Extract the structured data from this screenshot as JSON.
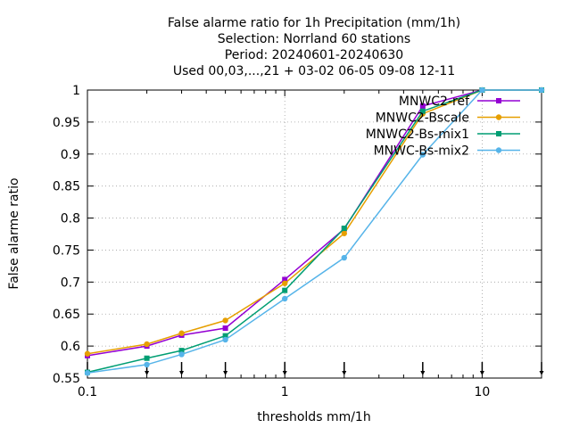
{
  "chart_data": {
    "type": "line",
    "title_lines": [
      "False alarme ratio  for 1h Precipitation (mm/1h)",
      "Selection: Norrland     60 stations",
      "Period: 20240601-20240630",
      "Used 00,03,...,21 + 03-02 06-05 09-08 12-11"
    ],
    "xlabel": "thresholds mm/1h",
    "ylabel": "False alarme ratio",
    "x_scale": "log",
    "xlim": [
      0.1,
      20
    ],
    "ylim": [
      0.55,
      1.0
    ],
    "x_ticks": [
      {
        "value": 0.1,
        "label": "0.1"
      },
      {
        "value": 1,
        "label": "1"
      },
      {
        "value": 10,
        "label": "10"
      }
    ],
    "y_ticks": [
      {
        "value": 0.55,
        "label": "0.55"
      },
      {
        "value": 0.6,
        "label": "0.6"
      },
      {
        "value": 0.65,
        "label": "0.65"
      },
      {
        "value": 0.7,
        "label": "0.7"
      },
      {
        "value": 0.75,
        "label": "0.75"
      },
      {
        "value": 0.8,
        "label": "0.8"
      },
      {
        "value": 0.85,
        "label": "0.85"
      },
      {
        "value": 0.9,
        "label": "0.9"
      },
      {
        "value": 0.95,
        "label": "0.95"
      },
      {
        "value": 1.0,
        "label": "1"
      }
    ],
    "grid": true,
    "legend_position": "top-right",
    "bottom_arrows_at": [
      0.1,
      0.2,
      0.3,
      0.5,
      1,
      2,
      5,
      10,
      20
    ],
    "x": [
      0.1,
      0.2,
      0.3,
      0.5,
      1,
      2,
      5,
      10,
      20
    ],
    "series": [
      {
        "name": "MNWC2-ref",
        "color": "#9400d3",
        "marker": "square",
        "values": [
          0.585,
          0.6,
          0.617,
          0.628,
          0.704,
          0.783,
          0.975,
          1.0,
          1.0
        ]
      },
      {
        "name": "MNWC2-Bscale",
        "color": "#e69f00",
        "marker": "circle",
        "values": [
          0.588,
          0.603,
          0.62,
          0.64,
          0.698,
          0.776,
          0.963,
          1.0,
          1.0
        ]
      },
      {
        "name": "MNWC2-Bs-mix1",
        "color": "#009e73",
        "marker": "square",
        "values": [
          0.559,
          0.581,
          0.593,
          0.616,
          0.687,
          0.784,
          0.967,
          1.0,
          1.0
        ]
      },
      {
        "name": "MNWC-Bs-mix2",
        "color": "#56b4e9",
        "marker": "circle",
        "values": [
          0.558,
          0.571,
          0.587,
          0.61,
          0.674,
          0.738,
          0.899,
          1.0,
          1.0
        ]
      }
    ]
  }
}
